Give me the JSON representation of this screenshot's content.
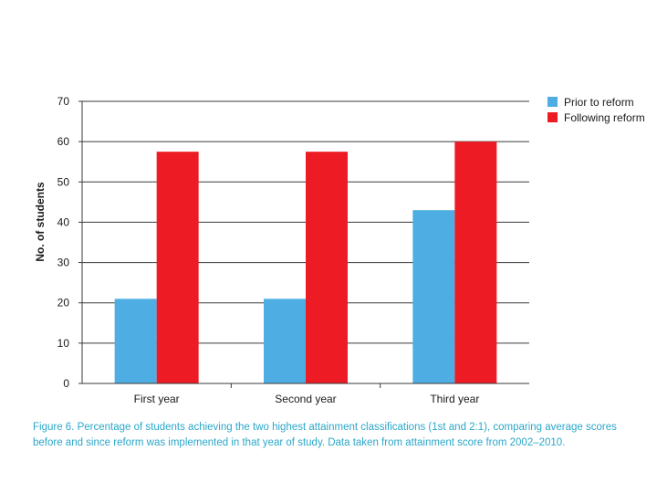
{
  "chart_data": {
    "type": "bar",
    "categories": [
      "First year",
      "Second year",
      "Third year"
    ],
    "series": [
      {
        "name": "Prior to reform",
        "values": [
          21,
          21,
          43
        ],
        "color": "#4eaee3"
      },
      {
        "name": "Following reform",
        "values": [
          57.5,
          57.5,
          60
        ],
        "color": "#ed1c24"
      }
    ],
    "ylabel": "No. of students",
    "ylim": [
      0,
      70
    ],
    "yticks": [
      0,
      10,
      20,
      30,
      40,
      50,
      60,
      70
    ],
    "grid": true,
    "legend_position": "top-right"
  },
  "caption": "Figure 6. Percentage of students achieving the two highest attainment classifications (1st and 2:1), comparing average scores before and since reform was implemented in that year of study. Data taken from attainment score from 2002–2010."
}
